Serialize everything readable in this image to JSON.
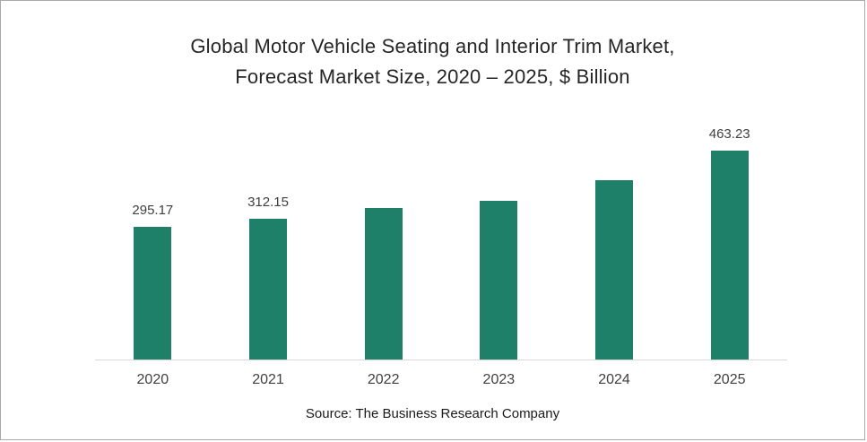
{
  "chart_data": {
    "type": "bar",
    "title_line1": "Global Motor Vehicle Seating and Interior Trim Market,",
    "title_line2": "Forecast Market Size, 2020 – 2025, $ Billion",
    "categories": [
      "2020",
      "2021",
      "2022",
      "2023",
      "2024",
      "2025"
    ],
    "values": [
      295.17,
      312.15,
      335.0,
      352.5,
      398.0,
      463.23
    ],
    "data_labels": [
      "295.17",
      "312.15",
      "",
      "",
      "",
      "463.23"
    ],
    "xlabel": "",
    "ylabel": "",
    "ylim": [
      0,
      500
    ],
    "grid": "off",
    "legend": "none",
    "bar_color": "#1e8068",
    "axis_color": "#d9d9d9",
    "label_color": "#404040",
    "source": "Source: The Business Research Company"
  }
}
